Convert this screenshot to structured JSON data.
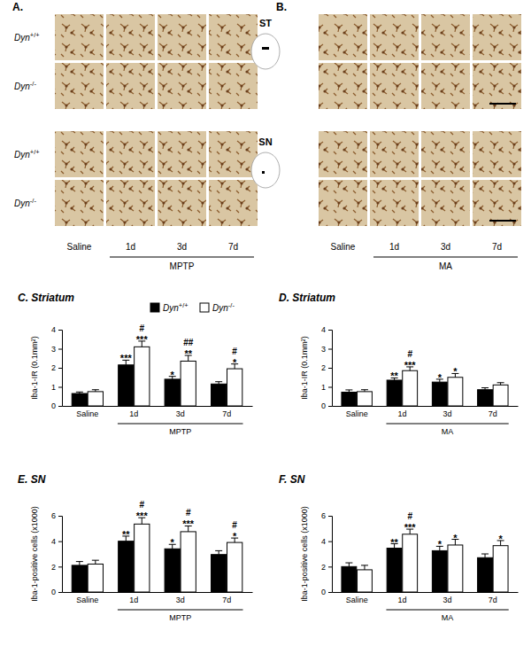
{
  "chart_data": [
    {
      "type": "bar",
      "title": "C. Striatum",
      "y_label": "Iba-1-IR (0.1mm²)",
      "categories": [
        "Saline",
        "1d",
        "3d",
        "7d"
      ],
      "category_groups": [
        {
          "label": "MPTP",
          "categories": [
            "1d",
            "3d",
            "7d"
          ]
        }
      ],
      "ylim": [
        0,
        4
      ],
      "yticks": [
        0,
        1,
        2,
        3,
        4
      ],
      "legend": "top",
      "series": [
        {
          "name": "Dyn+/+",
          "color": "#000000",
          "values": [
            0.65,
            2.15,
            1.4,
            1.15
          ],
          "errors": [
            0.08,
            0.25,
            0.15,
            0.12
          ],
          "stars": [
            null,
            "***",
            "*",
            null
          ]
        },
        {
          "name": "Dyn-/-",
          "color": "#ffffff",
          "values": [
            0.75,
            3.1,
            2.35,
            1.95
          ],
          "errors": [
            0.1,
            0.3,
            0.3,
            0.25
          ],
          "stars": [
            null,
            "***",
            "**",
            "*"
          ],
          "hashes": [
            null,
            "#",
            "##",
            "#"
          ]
        }
      ]
    },
    {
      "type": "bar",
      "title": "D. Striatum",
      "y_label": "Iba-1-IR (0.1mm²)",
      "categories": [
        "Saline",
        "1d",
        "3d",
        "7d"
      ],
      "category_groups": [
        {
          "label": "MA",
          "categories": [
            "1d",
            "3d",
            "7d"
          ]
        }
      ],
      "ylim": [
        0,
        4
      ],
      "yticks": [
        0,
        1,
        2,
        3,
        4
      ],
      "series": [
        {
          "name": "Dyn+/+",
          "color": "#000000",
          "values": [
            0.72,
            1.35,
            1.25,
            0.85
          ],
          "errors": [
            0.12,
            0.12,
            0.15,
            0.1
          ],
          "stars": [
            null,
            "**",
            "*",
            null
          ]
        },
        {
          "name": "Dyn-/-",
          "color": "#ffffff",
          "values": [
            0.75,
            1.85,
            1.5,
            1.1
          ],
          "errors": [
            0.1,
            0.2,
            0.2,
            0.12
          ],
          "stars": [
            null,
            "***",
            "*",
            null
          ],
          "hashes": [
            null,
            "#",
            null,
            null
          ]
        }
      ]
    },
    {
      "type": "bar",
      "title": "E. SN",
      "y_label": "Iba-1-positive cells (x1000)",
      "categories": [
        "Saline",
        "1d",
        "3d",
        "7d"
      ],
      "category_groups": [
        {
          "label": "MPTP",
          "categories": [
            "1d",
            "3d",
            "7d"
          ]
        }
      ],
      "ylim": [
        0,
        6
      ],
      "yticks": [
        0,
        2,
        4,
        6
      ],
      "series": [
        {
          "name": "Dyn+/+",
          "color": "#000000",
          "values": [
            2.1,
            4.0,
            3.4,
            2.95
          ],
          "errors": [
            0.3,
            0.4,
            0.35,
            0.3
          ],
          "stars": [
            null,
            "**",
            "*",
            null
          ]
        },
        {
          "name": "Dyn-/-",
          "color": "#ffffff",
          "values": [
            2.2,
            5.35,
            4.75,
            3.9
          ],
          "errors": [
            0.3,
            0.5,
            0.45,
            0.35
          ],
          "stars": [
            null,
            "***",
            "***",
            "*"
          ],
          "hashes": [
            null,
            "#",
            "#",
            "#"
          ]
        }
      ]
    },
    {
      "type": "bar",
      "title": "F. SN",
      "y_label": "Iba-1-positive cells (x1000)",
      "categories": [
        "Saline",
        "1d",
        "3d",
        "7d"
      ],
      "category_groups": [
        {
          "label": "MA",
          "categories": [
            "1d",
            "3d",
            "7d"
          ]
        }
      ],
      "ylim": [
        0,
        6
      ],
      "yticks": [
        0,
        2,
        4,
        6
      ],
      "series": [
        {
          "name": "Dyn+/+",
          "color": "#000000",
          "values": [
            2.0,
            3.45,
            3.25,
            2.7
          ],
          "errors": [
            0.3,
            0.35,
            0.35,
            0.3
          ],
          "stars": [
            null,
            "**",
            "*",
            null
          ]
        },
        {
          "name": "Dyn-/-",
          "color": "#ffffff",
          "values": [
            1.75,
            4.55,
            3.7,
            3.65
          ],
          "errors": [
            0.35,
            0.4,
            0.45,
            0.4
          ],
          "stars": [
            null,
            "***",
            "*",
            "*"
          ],
          "hashes": [
            null,
            "#",
            null,
            null
          ]
        }
      ]
    }
  ],
  "image_panels": {
    "panels": [
      {
        "label": "A.",
        "treatment": "MPTP"
      },
      {
        "label": "B.",
        "treatment": "MA"
      }
    ],
    "regions": [
      "ST",
      "SN"
    ],
    "genotypes": [
      "Dyn+/+",
      "Dyn-/-"
    ],
    "conditions": [
      "Saline",
      "1d",
      "3d",
      "7d"
    ],
    "treatment_conditions": [
      "1d",
      "3d",
      "7d"
    ]
  }
}
